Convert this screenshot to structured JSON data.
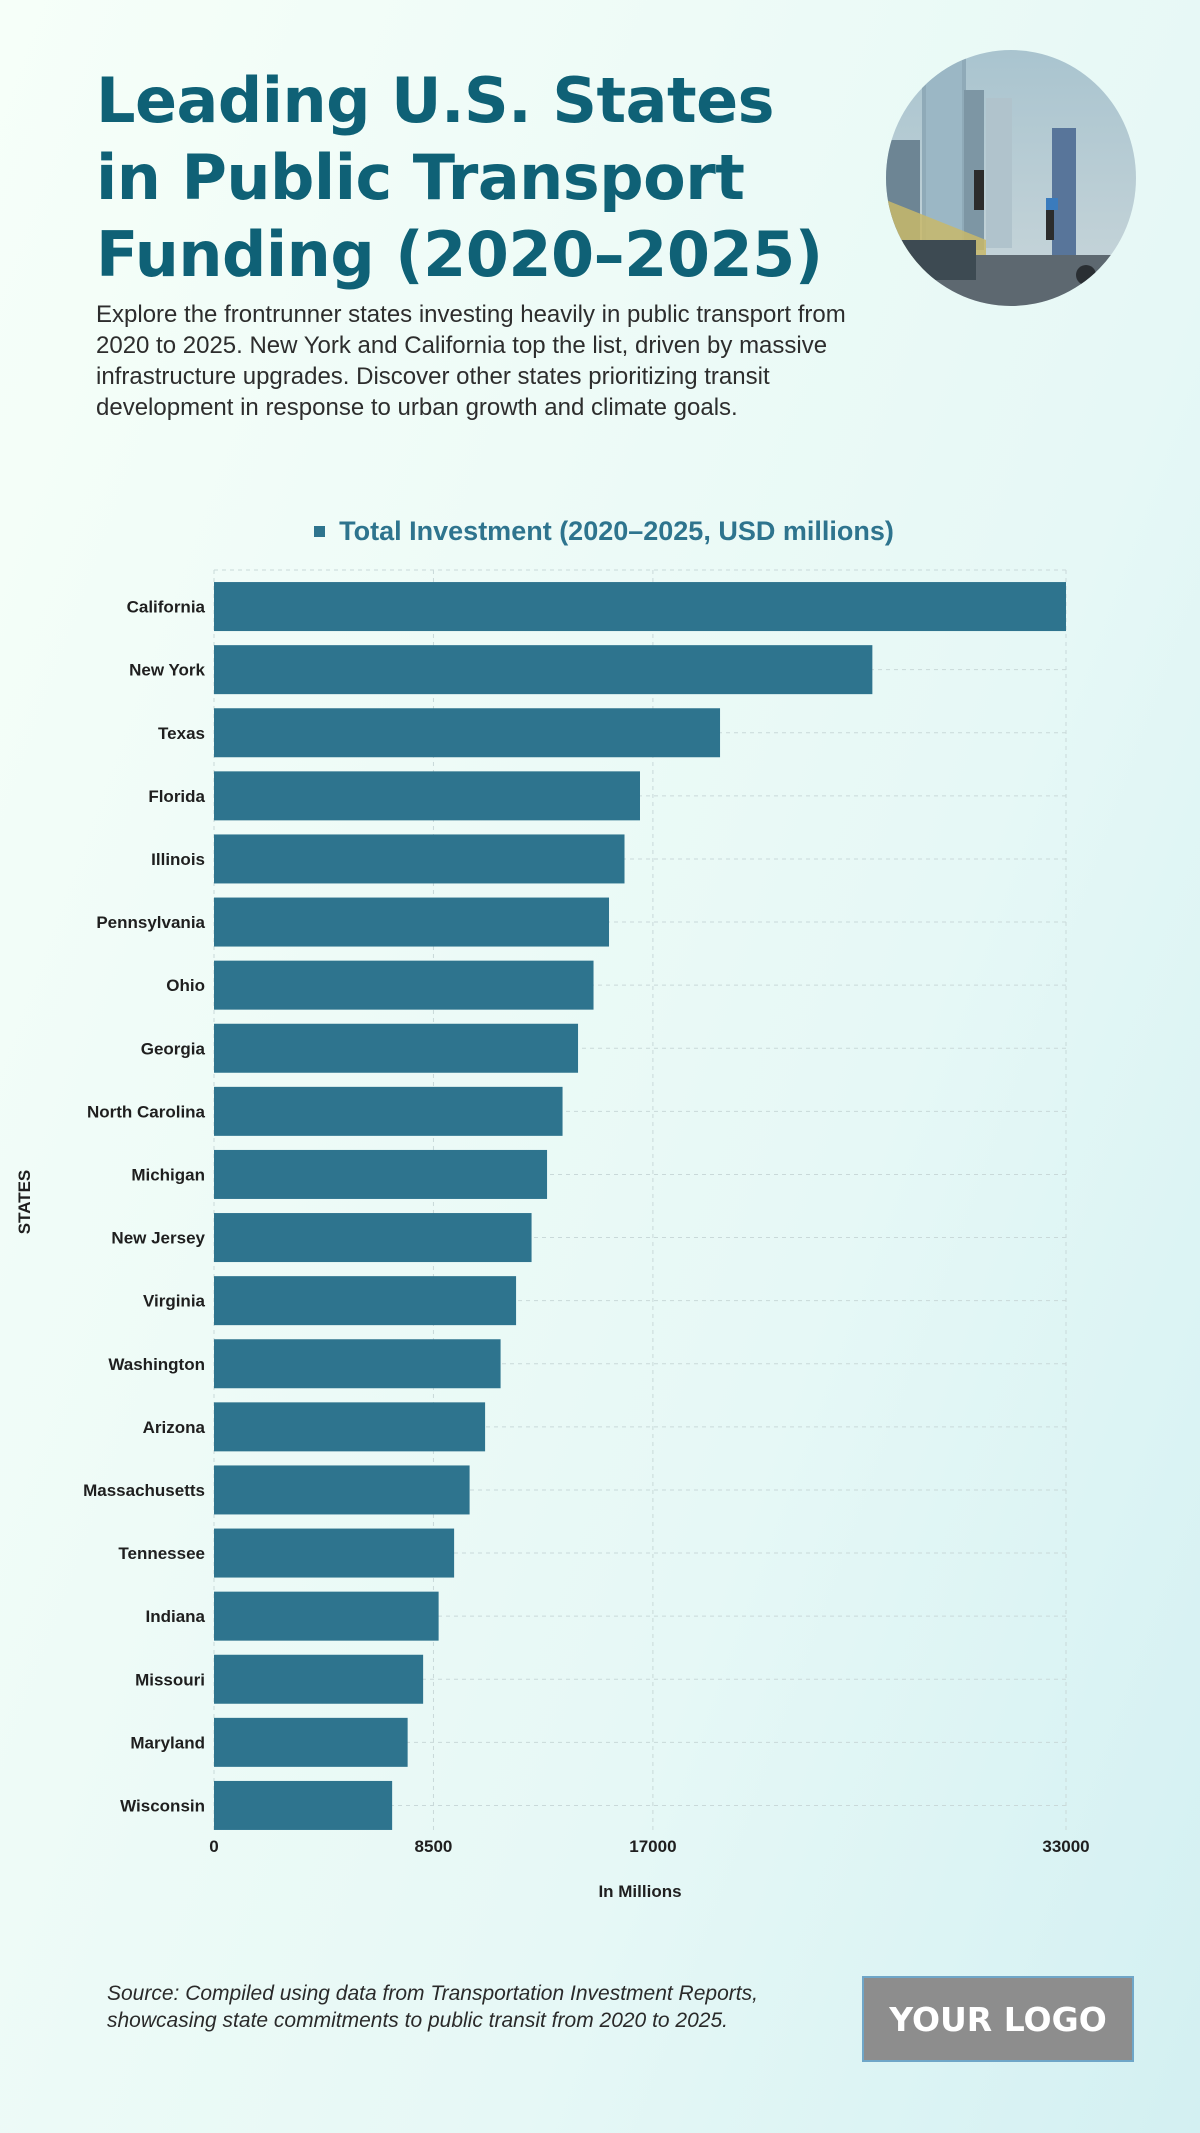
{
  "header": {
    "title": "Leading U.S. States in Public Transport Funding (2020–2025)",
    "subtitle": "Explore the frontrunner states investing heavily in public transport from 2020 to 2025. New York and California top the list, driven by massive infrastructure upgrades. Discover other states prioritizing transit development in response to urban growth and climate goals."
  },
  "footer": {
    "source": "Source: Compiled using data from Transportation Investment Reports, showcasing state commitments to public transit from 2020 to 2025.",
    "logo": "YOUR LOGO"
  },
  "colors": {
    "title": "#0f6176",
    "bar": "#2e748e",
    "grid": "#c9d9d9"
  },
  "chart_data": {
    "type": "bar",
    "orientation": "horizontal",
    "legend": "Total Investment (2020–2025, USD millions)",
    "legend_position": "top-center",
    "xlabel": "In Millions",
    "ylabel": "STATES",
    "xlim": [
      0,
      33000
    ],
    "xticks": [
      0,
      8500,
      17000,
      33000
    ],
    "grid": true,
    "categories": [
      "California",
      "New York",
      "Texas",
      "Florida",
      "Illinois",
      "Pennsylvania",
      "Ohio",
      "Georgia",
      "North Carolina",
      "Michigan",
      "New Jersey",
      "Virginia",
      "Washington",
      "Arizona",
      "Massachusetts",
      "Tennessee",
      "Indiana",
      "Missouri",
      "Maryland",
      "Wisconsin"
    ],
    "series": [
      {
        "name": "Total Investment (2020–2025, USD millions)",
        "values": [
          33000,
          25500,
          19600,
          16500,
          15900,
          15300,
          14700,
          14100,
          13500,
          12900,
          12300,
          11700,
          11100,
          10500,
          9900,
          9300,
          8700,
          8100,
          7500,
          6900
        ]
      }
    ]
  }
}
